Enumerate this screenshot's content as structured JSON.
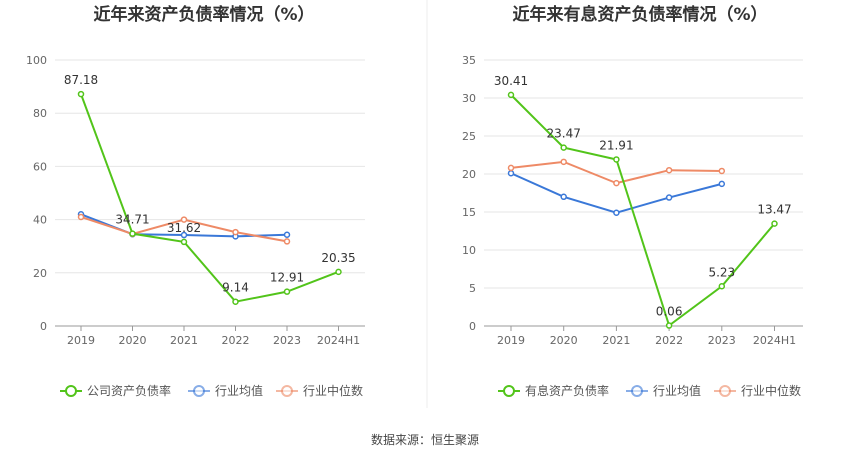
{
  "colors": {
    "company": "#52c41a",
    "avg": "#3a78d8",
    "median": "#ee8a66",
    "grid": "#e6e6e6",
    "axis": "#999999"
  },
  "source_text": "数据来源：恒生聚源",
  "chart_data": [
    {
      "type": "line",
      "title": "近年来资产负债率情况（%）",
      "categories": [
        "2019",
        "2020",
        "2021",
        "2022",
        "2023",
        "2024H1"
      ],
      "ylim": [
        0,
        100
      ],
      "yticks": [
        0,
        20,
        40,
        60,
        80,
        100
      ],
      "series": [
        {
          "name": "公司资产负债率",
          "key": "company",
          "values": [
            87.18,
            34.71,
            31.62,
            9.14,
            12.91,
            20.35
          ],
          "labels": [
            "87.18",
            "34.71",
            "31.62",
            "9.14",
            "12.91",
            "20.35"
          ]
        },
        {
          "name": "行业均值",
          "key": "avg",
          "values": [
            42.0,
            34.5,
            34.2,
            33.7,
            34.3,
            null
          ]
        },
        {
          "name": "行业中位数",
          "key": "median",
          "values": [
            41.0,
            34.6,
            40.0,
            35.3,
            31.8,
            null
          ]
        }
      ],
      "legend_position": "bottom"
    },
    {
      "type": "line",
      "title": "近年来有息资产负债率情况（%）",
      "categories": [
        "2019",
        "2020",
        "2021",
        "2022",
        "2023",
        "2024H1"
      ],
      "ylim": [
        0,
        35
      ],
      "yticks": [
        0,
        5,
        10,
        15,
        20,
        25,
        30,
        35
      ],
      "series": [
        {
          "name": "有息资产负债率",
          "key": "company",
          "values": [
            30.41,
            23.47,
            21.91,
            0.06,
            5.23,
            13.47
          ],
          "labels": [
            "30.41",
            "23.47",
            "21.91",
            "0.06",
            "5.23",
            "13.47"
          ]
        },
        {
          "name": "行业均值",
          "key": "avg",
          "values": [
            20.1,
            17.0,
            14.9,
            16.9,
            18.7,
            null
          ]
        },
        {
          "name": "行业中位数",
          "key": "median",
          "values": [
            20.8,
            21.6,
            18.8,
            20.5,
            20.4,
            null
          ]
        }
      ],
      "legend_position": "bottom"
    }
  ]
}
